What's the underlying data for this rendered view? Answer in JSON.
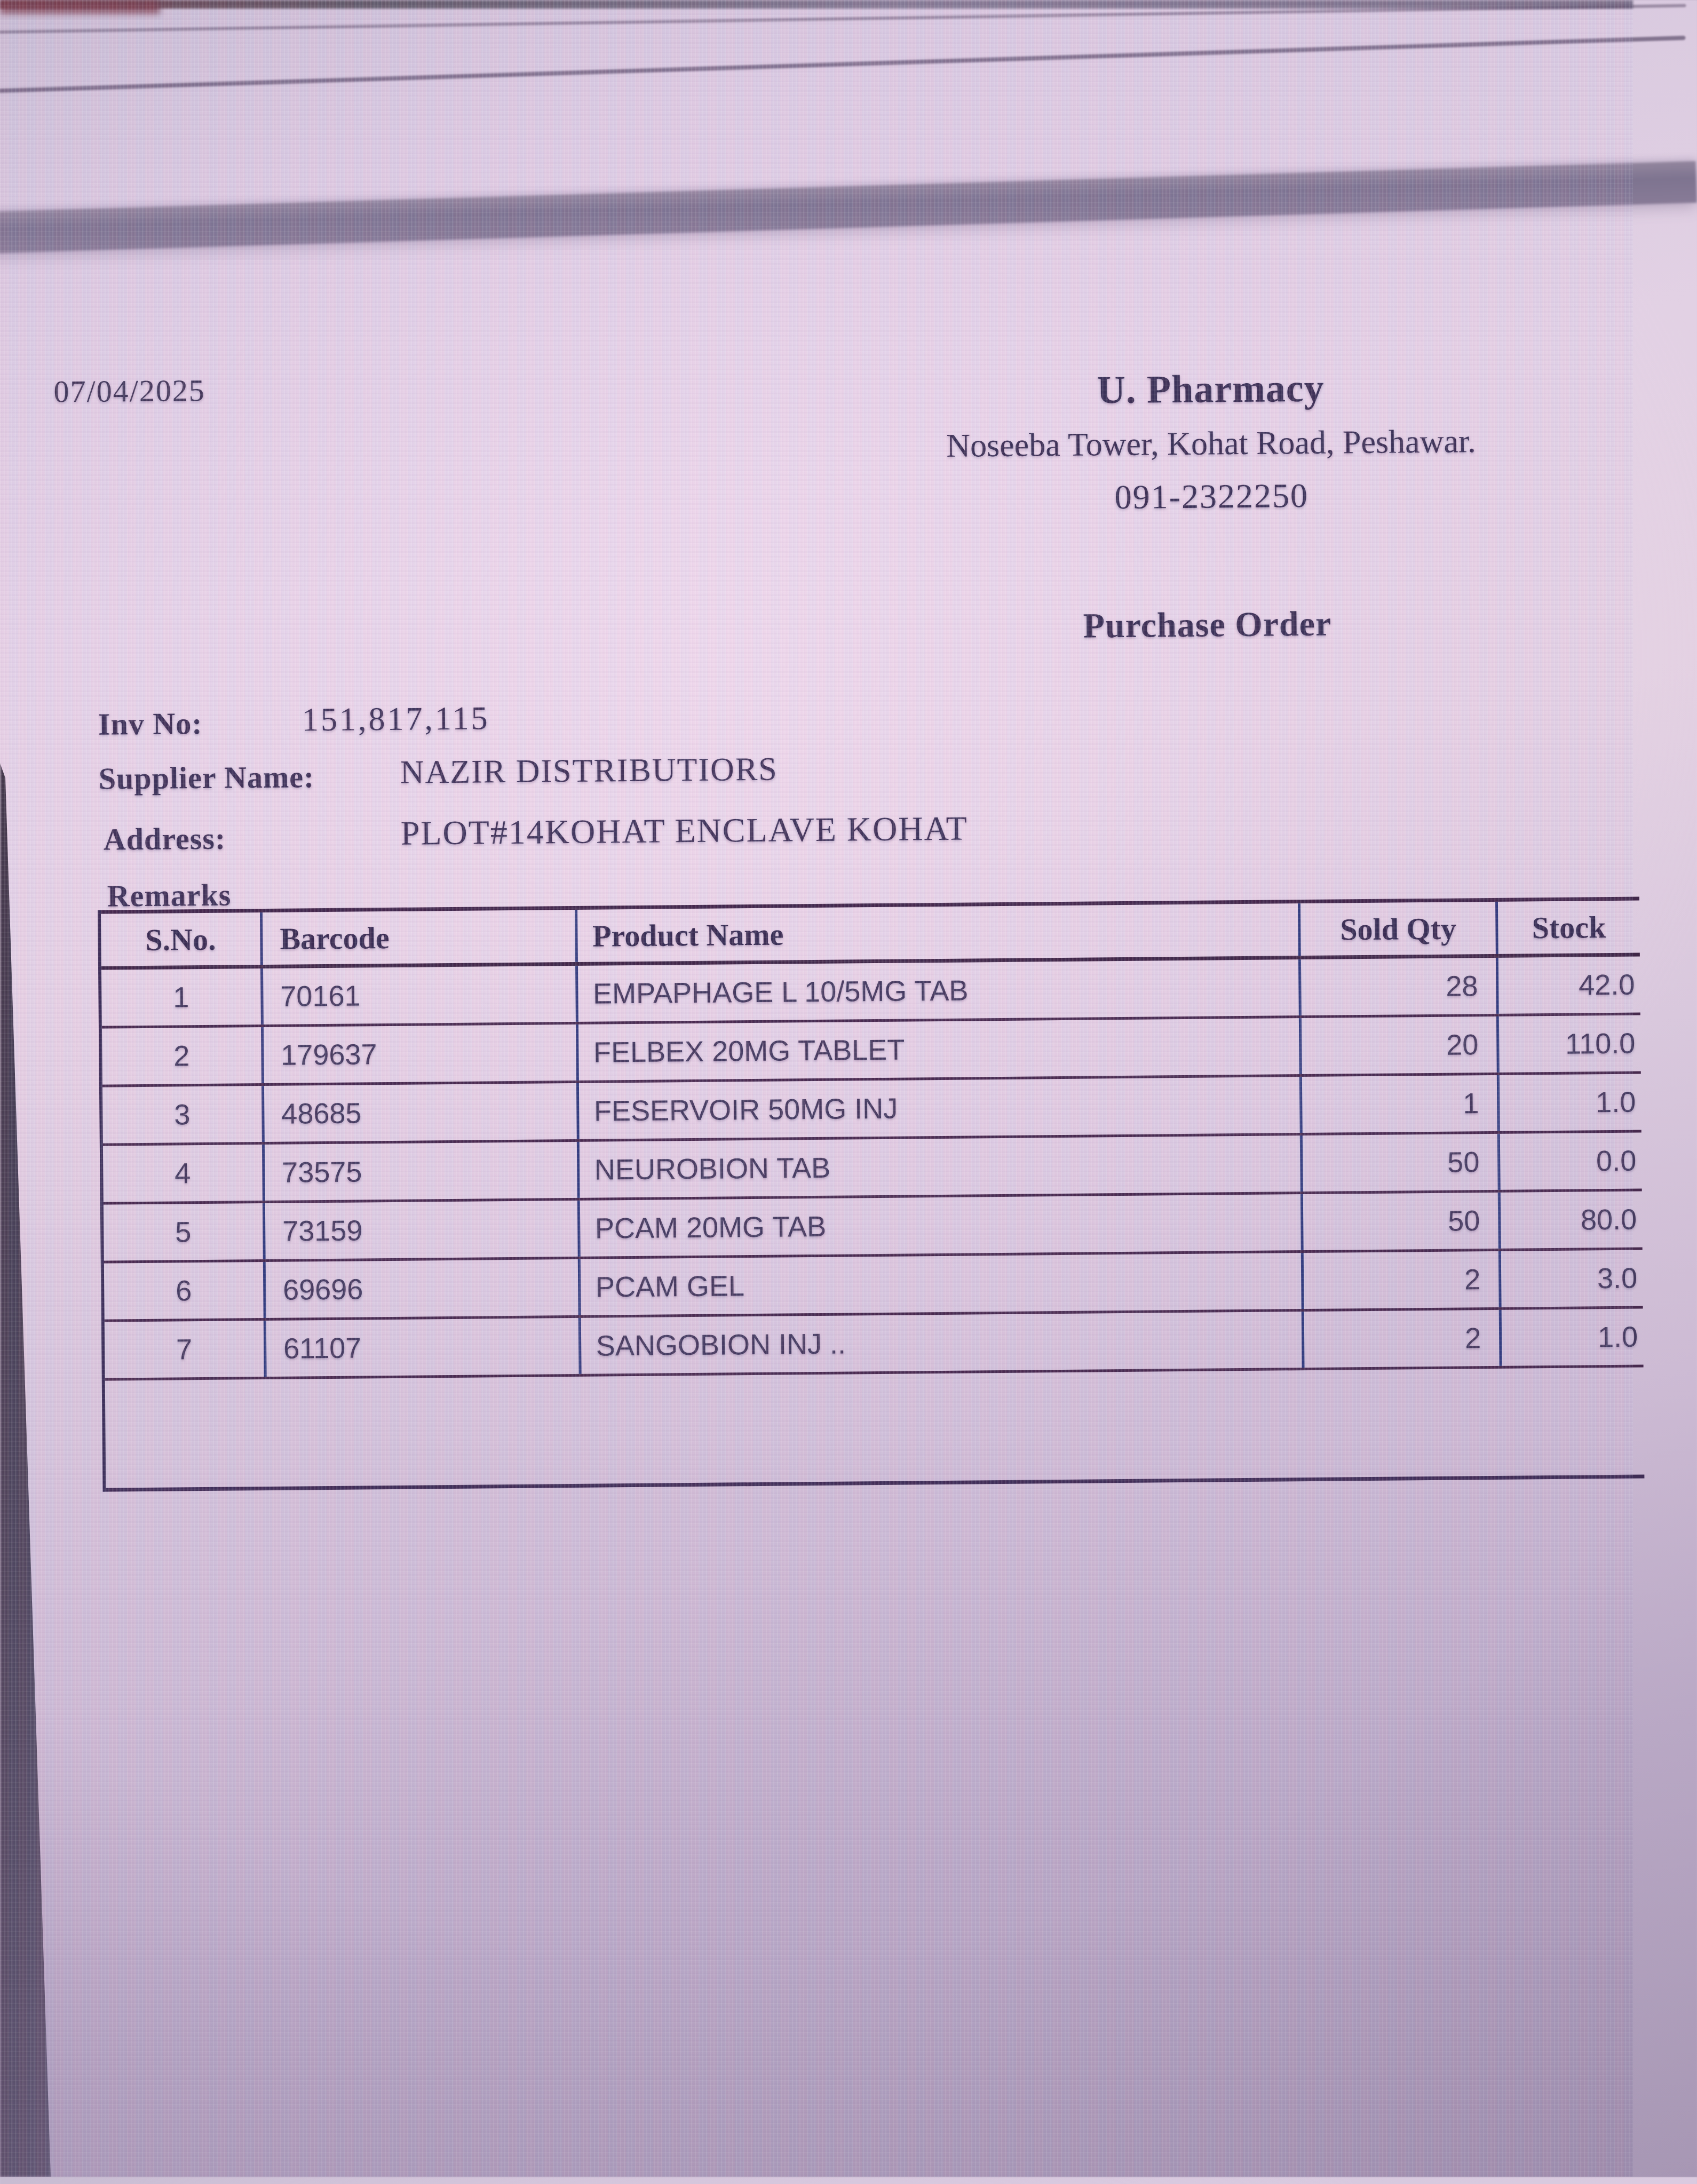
{
  "photo": {
    "description": "photo of a monitor displaying a purchase order report",
    "accent_colors": {
      "document_ink": "#3a3054",
      "horizontal_rule": "#472a4e",
      "vertical_rule": "#333c7d",
      "toolbar_band": "#7e7490",
      "bezel": "#463d52"
    }
  },
  "document": {
    "date": "07/04/2025",
    "pharmacy": {
      "name": "U. Pharmacy",
      "address_line": "Noseeba Tower, Kohat Road, Peshawar.",
      "phone": "091-2322250"
    },
    "title": "Purchase Order",
    "fields": {
      "inv_no_label": "Inv No:",
      "inv_no_value": "151,817,115",
      "supplier_label": "Supplier Name:",
      "supplier_value": "NAZIR DISTRIBUTIORS",
      "address_label": "Address:",
      "address_value": "PLOT#14KOHAT ENCLAVE KOHAT",
      "remarks_label": "Remarks"
    },
    "table": {
      "headers": [
        "S.No.",
        "Barcode",
        "Product Name",
        "Sold Qty",
        "Stock"
      ],
      "rows": [
        {
          "sno": "1",
          "barcode": "70161",
          "product": "EMPAPHAGE L 10/5MG TAB",
          "sold_qty": "28",
          "stock": "42.0"
        },
        {
          "sno": "2",
          "barcode": "179637",
          "product": "FELBEX 20MG TABLET",
          "sold_qty": "20",
          "stock": "110.0"
        },
        {
          "sno": "3",
          "barcode": "48685",
          "product": "FESERVOIR 50MG INJ",
          "sold_qty": "1",
          "stock": "1.0"
        },
        {
          "sno": "4",
          "barcode": "73575",
          "product": "NEUROBION TAB",
          "sold_qty": "50",
          "stock": "0.0"
        },
        {
          "sno": "5",
          "barcode": "73159",
          "product": "PCAM 20MG TAB",
          "sold_qty": "50",
          "stock": "80.0"
        },
        {
          "sno": "6",
          "barcode": "69696",
          "product": "PCAM GEL",
          "sold_qty": "2",
          "stock": "3.0"
        },
        {
          "sno": "7",
          "barcode": "61107",
          "product": "SANGOBION INJ ..",
          "sold_qty": "2",
          "stock": "1.0"
        }
      ]
    }
  }
}
